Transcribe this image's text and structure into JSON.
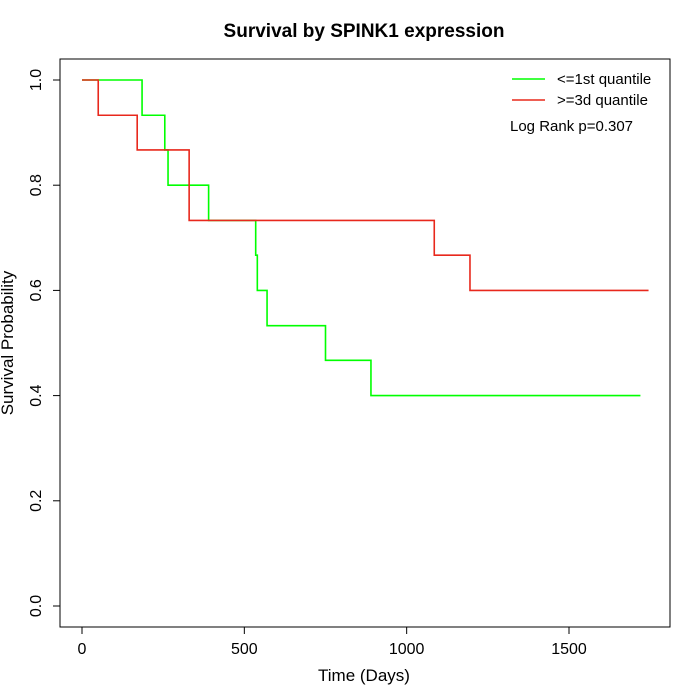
{
  "chart_data": {
    "type": "line",
    "step": "post",
    "title": "Survival by SPINK1 expression",
    "xlabel": "Time (Days)",
    "ylabel": "Survival Probability",
    "xlim": [
      0,
      1800
    ],
    "ylim": [
      0,
      1.0
    ],
    "xticks": [
      0,
      500,
      1000,
      1500
    ],
    "yticks": [
      "0.0",
      "0.2",
      "0.4",
      "0.6",
      "0.8",
      "1.0"
    ],
    "grid": false,
    "legend_position": "top-right",
    "annotation": "Log Rank p=0.307",
    "series": [
      {
        "name": "<=1st quantile",
        "color": "#00ff00",
        "x": [
          0,
          185,
          255,
          265,
          390,
          535,
          540,
          570,
          750,
          890,
          1720
        ],
        "y": [
          1.0,
          0.933,
          0.867,
          0.8,
          0.733,
          0.667,
          0.6,
          0.533,
          0.467,
          0.4,
          0.4
        ]
      },
      {
        "name": ">=3d quantile",
        "color": "#e8281c",
        "x": [
          0,
          50,
          170,
          330,
          1085,
          1195,
          1745
        ],
        "y": [
          1.0,
          0.933,
          0.867,
          0.733,
          0.667,
          0.6,
          0.6
        ]
      }
    ]
  }
}
